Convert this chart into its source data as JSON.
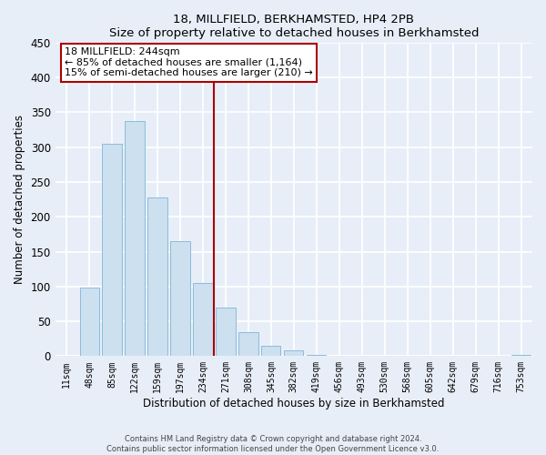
{
  "title": "18, MILLFIELD, BERKHAMSTED, HP4 2PB",
  "subtitle": "Size of property relative to detached houses in Berkhamsted",
  "xlabel": "Distribution of detached houses by size in Berkhamsted",
  "ylabel": "Number of detached properties",
  "bar_labels": [
    "11sqm",
    "48sqm",
    "85sqm",
    "122sqm",
    "159sqm",
    "197sqm",
    "234sqm",
    "271sqm",
    "308sqm",
    "345sqm",
    "382sqm",
    "419sqm",
    "456sqm",
    "493sqm",
    "530sqm",
    "568sqm",
    "605sqm",
    "642sqm",
    "679sqm",
    "716sqm",
    "753sqm"
  ],
  "bar_values": [
    0,
    98,
    305,
    338,
    228,
    165,
    105,
    70,
    35,
    15,
    8,
    2,
    0,
    0,
    0,
    0,
    0,
    0,
    0,
    0,
    2
  ],
  "bar_color": "#cce0f0",
  "bar_edge_color": "#8bbcda",
  "vline_color": "#aa0000",
  "annotation_line1": "18 MILLFIELD: 244sqm",
  "annotation_line2": "← 85% of detached houses are smaller (1,164)",
  "annotation_line3": "15% of semi-detached houses are larger (210) →",
  "annotation_box_color": "#ffffff",
  "annotation_box_edge_color": "#aa0000",
  "ylim": [
    0,
    450
  ],
  "yticks": [
    0,
    50,
    100,
    150,
    200,
    250,
    300,
    350,
    400,
    450
  ],
  "footnote1": "Contains HM Land Registry data © Crown copyright and database right 2024.",
  "footnote2": "Contains public sector information licensed under the Open Government Licence v3.0.",
  "bg_color": "#e8eef8",
  "grid_color": "#ffffff",
  "vline_bar_index": 6
}
